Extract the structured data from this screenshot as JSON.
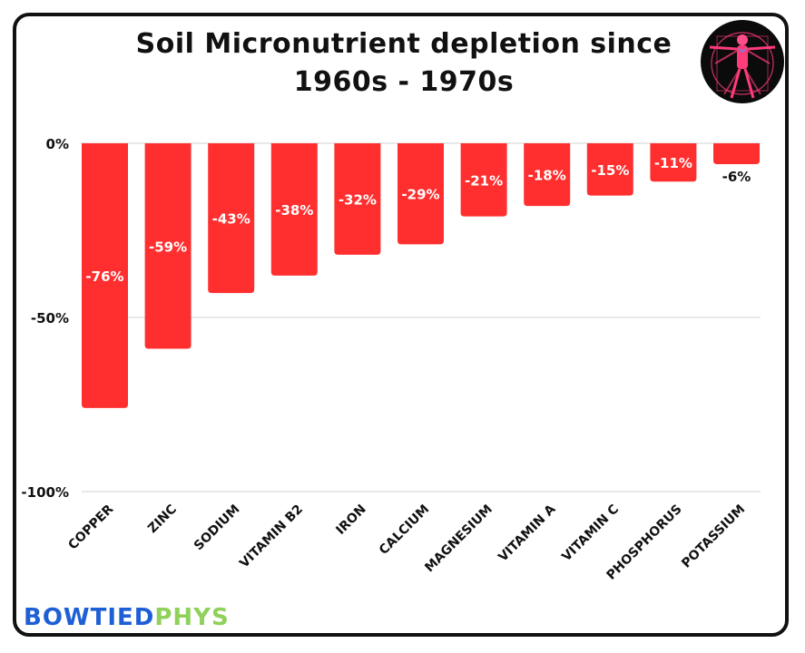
{
  "title_line1": "Soil Micronutrient depletion since",
  "title_line2": "1960s - 1970s",
  "brand": {
    "part1": "BOWTIED",
    "part2": "PHYS",
    "color1": "#1f5fd6",
    "color2": "#8fd15a"
  },
  "logo": {
    "icon": "vitruvian-man-icon"
  },
  "colors": {
    "bar": "#ff2f2f",
    "grid": "#d0d0d0",
    "text": "#111111"
  },
  "chart_data": {
    "type": "bar",
    "categories": [
      "Copper",
      "Zinc",
      "Sodium",
      "Vitamin B2",
      "Iron",
      "Calcium",
      "Magnesium",
      "Vitamin A",
      "Vitamin C",
      "Phosphorus",
      "Potassium"
    ],
    "values": [
      -76,
      -59,
      -43,
      -38,
      -32,
      -29,
      -21,
      -18,
      -15,
      -11,
      -6
    ],
    "data_labels": [
      "-76%",
      "-59%",
      "-43%",
      "-38%",
      "-32%",
      "-29%",
      "-21%",
      "-18%",
      "-15%",
      "-11%",
      "-6%"
    ],
    "y_ticks": [
      0,
      -50,
      -100
    ],
    "y_tick_labels": [
      "0%",
      "-50%",
      "-100%"
    ],
    "ylim": [
      -100,
      0
    ],
    "grid": true,
    "legend": "none"
  }
}
